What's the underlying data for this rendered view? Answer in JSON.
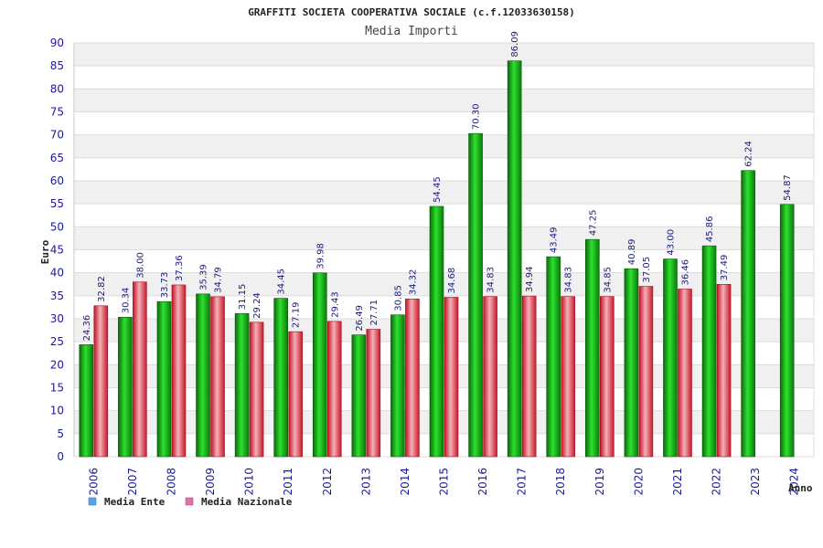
{
  "chart_data": {
    "type": "bar",
    "title": "GRAFFITI SOCIETA COOPERATIVA SOCIALE (c.f.12033630158)",
    "subtitle": "Media Importi",
    "xlabel": "Anno",
    "ylabel": "Euro",
    "ylim": [
      0,
      90
    ],
    "ytick_step": 5,
    "grid": true,
    "legend_position": "bottom-left",
    "categories": [
      "2006",
      "2007",
      "2008",
      "2009",
      "2010",
      "2011",
      "2012",
      "2013",
      "2014",
      "2015",
      "2016",
      "2017",
      "2018",
      "2019",
      "2020",
      "2021",
      "2022",
      "2023",
      "2024"
    ],
    "series": [
      {
        "name": "Media Ente",
        "color": "#1aa81a",
        "legend_color": "#5aa0e8",
        "values": [
          24.36,
          30.34,
          33.73,
          35.39,
          31.15,
          34.45,
          39.98,
          26.49,
          30.85,
          54.45,
          70.3,
          86.09,
          43.49,
          47.25,
          40.89,
          43.0,
          45.86,
          62.24,
          54.87
        ],
        "labels": [
          "24.36",
          "30.34",
          "33.73",
          "35.39",
          "31.15",
          "34.45",
          "39.98",
          "26.49",
          "30.85",
          "54.45",
          "70.30",
          "86.09",
          "43.49",
          "47.25",
          "40.89",
          "43.00",
          "45.86",
          "62.24",
          "54.87"
        ]
      },
      {
        "name": "Media Nazionale",
        "color": "#e03040",
        "legend_color": "#e070a8",
        "values": [
          32.82,
          38.0,
          37.36,
          34.79,
          29.24,
          27.19,
          29.43,
          27.71,
          34.32,
          34.68,
          34.83,
          34.94,
          34.83,
          34.85,
          37.05,
          36.46,
          37.49,
          null,
          null
        ],
        "labels": [
          "32.82",
          "38.00",
          "37.36",
          "34.79",
          "29.24",
          "27.19",
          "29.43",
          "27.71",
          "34.32",
          "34.68",
          "34.83",
          "34.94",
          "34.83",
          "34.85",
          "37.05",
          "36.46",
          "37.49",
          null,
          null
        ]
      }
    ]
  }
}
